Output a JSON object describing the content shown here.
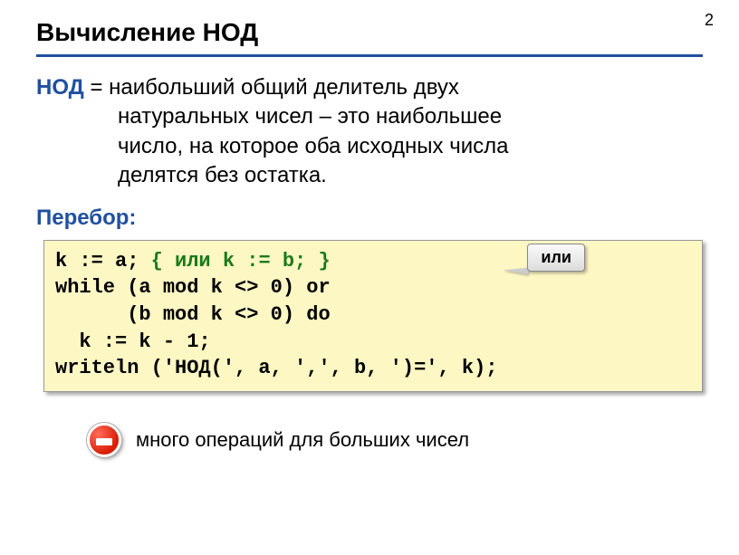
{
  "page_number": "2",
  "title": "Вычисление НОД",
  "definition": {
    "term": "НОД",
    "line1_rest": " = наибольший общий делитель двух",
    "line2": "натуральных чисел – это наибольшее",
    "line3": "число, на которое оба исходных числа",
    "line4": "делятся без остатка."
  },
  "subhead": "Перебор:",
  "code": {
    "l1a": "k := a; ",
    "l1_comment": "{ или k := b; }",
    "l2": "while (a mod k <> 0) or",
    "l3": "      (b mod k <> 0) do",
    "l4": "  k := k - 1;",
    "l5": "writeln ('НОД(', a, ',', b, ')=', k);",
    "background": "#fdf7c4",
    "comment_color": "#1a7a1a"
  },
  "callout_label": "или",
  "note_text": "много операций для больших чисел",
  "colors": {
    "accent": "#2050a0",
    "stop_red": "#d81e05"
  }
}
